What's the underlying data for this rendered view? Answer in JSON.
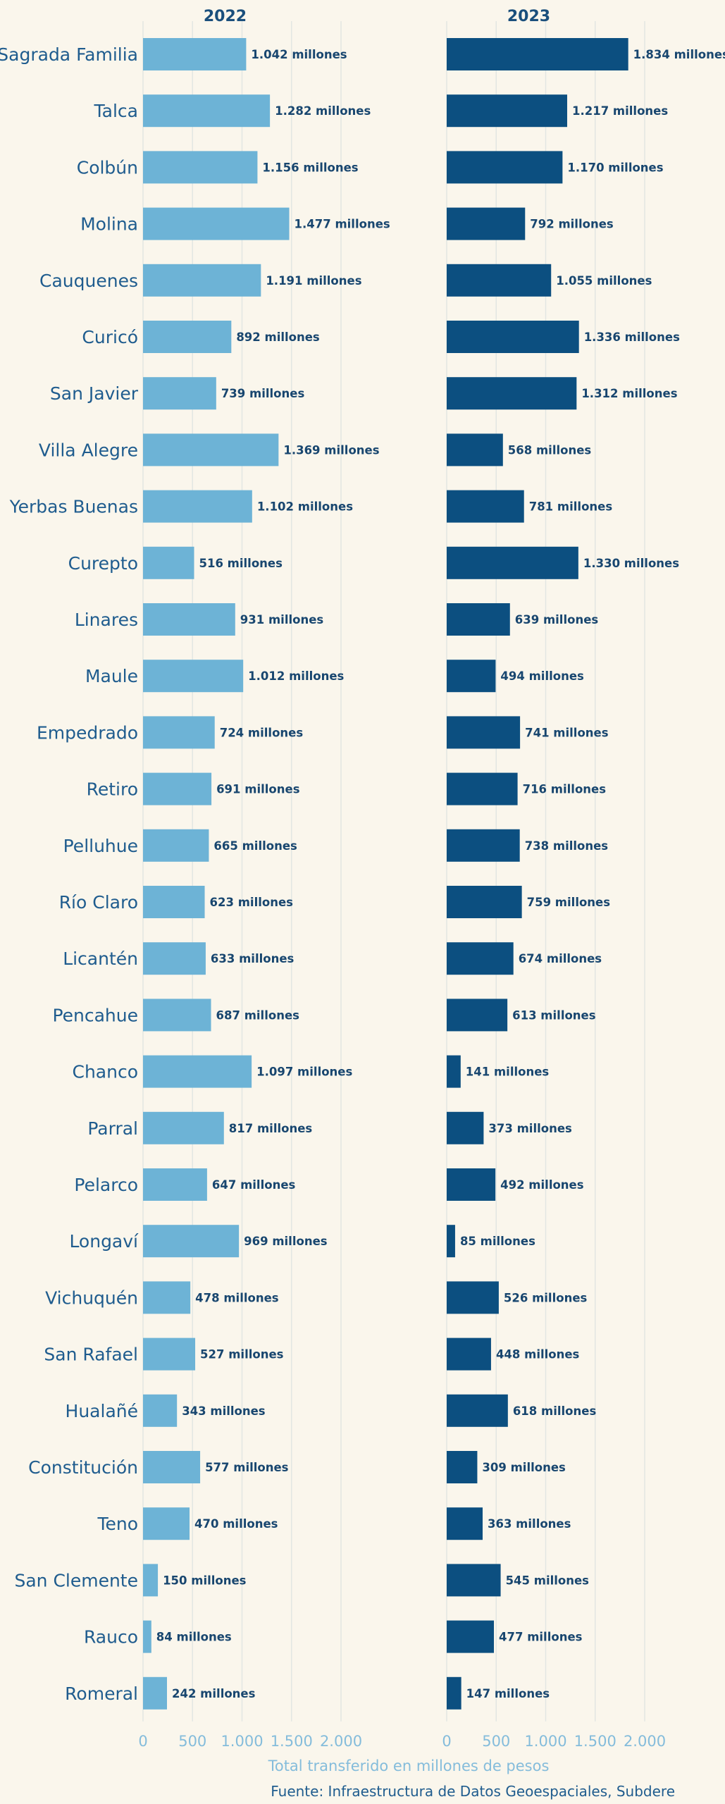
{
  "chart_data": {
    "type": "bar",
    "orientation": "horizontal",
    "categories": [
      "Sagrada Familia",
      "Talca",
      "Colbún",
      "Molina",
      "Cauquenes",
      "Curicó",
      "San Javier",
      "Villa Alegre",
      "Yerbas Buenas",
      "Curepto",
      "Linares",
      "Maule",
      "Empedrado",
      "Retiro",
      "Pelluhue",
      "Río Claro",
      "Licantén",
      "Pencahue",
      "Chanco",
      "Parral",
      "Pelarco",
      "Longaví",
      "Vichuquén",
      "San Rafael",
      "Hualañé",
      "Constitución",
      "Teno",
      "San Clemente",
      "Rauco",
      "Romeral"
    ],
    "series": [
      {
        "name": "2022",
        "color": "#6db3d6",
        "values": [
          1042,
          1282,
          1156,
          1477,
          1191,
          892,
          739,
          1369,
          1102,
          516,
          931,
          1012,
          724,
          691,
          665,
          623,
          633,
          687,
          1097,
          817,
          647,
          969,
          478,
          527,
          343,
          577,
          470,
          150,
          84,
          242
        ],
        "labels": [
          "1.042 millones",
          "1.282 millones",
          "1.156 millones",
          "1.477 millones",
          "1.191 millones",
          "892 millones",
          "739 millones",
          "1.369 millones",
          "1.102 millones",
          "516 millones",
          "931 millones",
          "1.012 millones",
          "724 millones",
          "691 millones",
          "665 millones",
          "623 millones",
          "633 millones",
          "687 millones",
          "1.097 millones",
          "817 millones",
          "647 millones",
          "969 millones",
          "478 millones",
          "527 millones",
          "343 millones",
          "577 millones",
          "470 millones",
          "150 millones",
          "84 millones",
          "242 millones"
        ]
      },
      {
        "name": "2023",
        "color": "#0c4f80",
        "values": [
          1834,
          1217,
          1170,
          792,
          1055,
          1336,
          1312,
          568,
          781,
          1330,
          639,
          494,
          741,
          716,
          738,
          759,
          674,
          613,
          141,
          373,
          492,
          85,
          526,
          448,
          618,
          309,
          363,
          545,
          477,
          147
        ],
        "labels": [
          "1.834 millones",
          "1.217 millones",
          "1.170 millones",
          "792 millones",
          "1.055 millones",
          "1.336 millones",
          "1.312 millones",
          "568 millones",
          "781 millones",
          "1.330 millones",
          "639 millones",
          "494 millones",
          "741 millones",
          "716 millones",
          "738 millones",
          "759 millones",
          "674 millones",
          "613 millones",
          "141 millones",
          "373 millones",
          "492 millones",
          "85 millones",
          "526 millones",
          "448 millones",
          "618 millones",
          "309 millones",
          "363 millones",
          "545 millones",
          "477 millones",
          "147 millones"
        ]
      }
    ],
    "xlim": [
      0,
      2000
    ],
    "xticks": [
      0,
      500,
      1000,
      1500,
      2000
    ],
    "xtick_labels": [
      "0",
      "500",
      "1.000",
      "1.500",
      "2.000"
    ],
    "xlabel": "Total transferido en millones de pesos",
    "caption": "Fuente: Infraestructura de Datos Geoespaciales, Subdere",
    "grid": "vertical",
    "legend": "none",
    "text_color": "#1f5c8e",
    "axis_color": "#84bcdb",
    "background": "#faf6ec"
  }
}
